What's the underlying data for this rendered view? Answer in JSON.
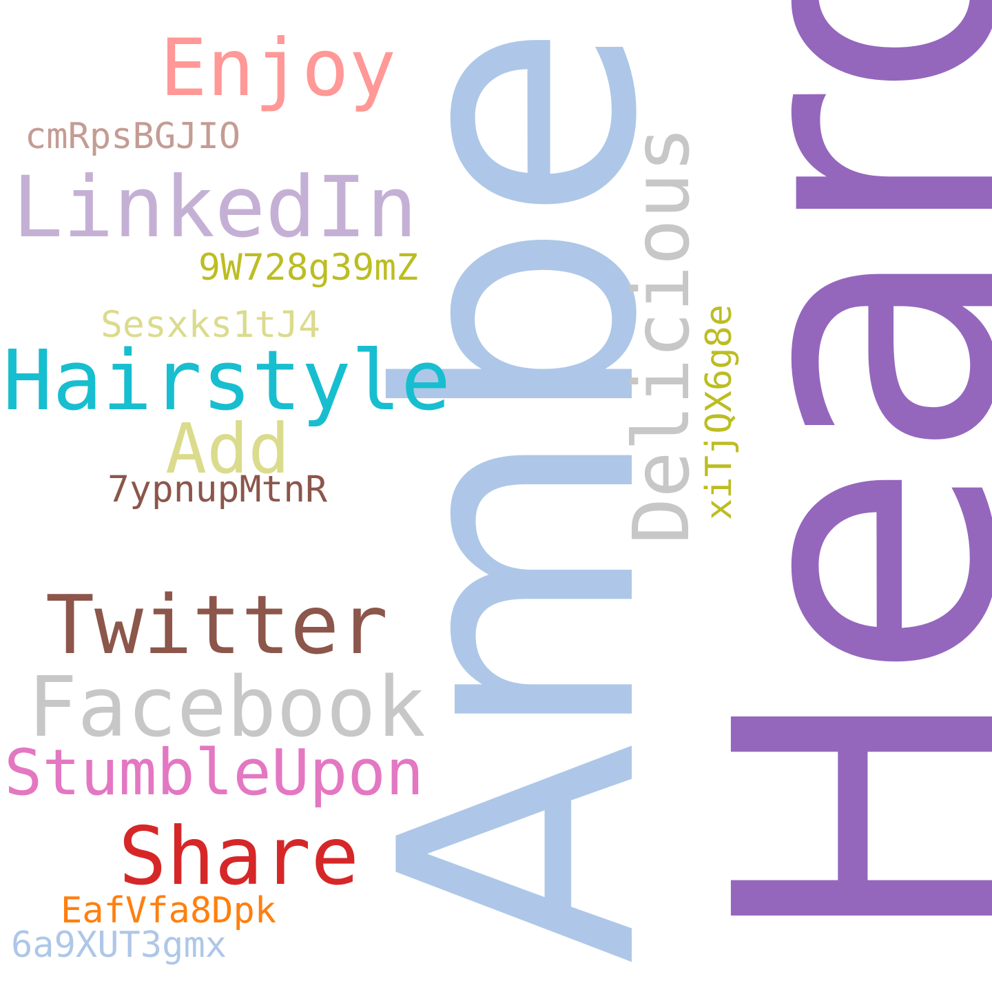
{
  "words": {
    "heard": {
      "text": "Heard",
      "color": "#9467bd"
    },
    "amber": {
      "text": "Amber",
      "color": "#aec7e8"
    },
    "delicious": {
      "text": "Delicious",
      "color": "#c7c7c7"
    },
    "xitjqx": {
      "text": "xiTjQX6g8e",
      "color": "#bcbd22"
    },
    "enjoy": {
      "text": "Enjoy",
      "color": "#ff9896"
    },
    "cmrps": {
      "text": "cmRpsBGJIO",
      "color": "#c49c94"
    },
    "linkedin": {
      "text": "LinkedIn",
      "color": "#c5b0d5"
    },
    "w728": {
      "text": "9W728g39mZ",
      "color": "#bcbd22"
    },
    "sesxks": {
      "text": "Sesxks1tJ4",
      "color": "#dbdb8d"
    },
    "hairstyle": {
      "text": "Hairstyle",
      "color": "#17becf"
    },
    "add": {
      "text": "Add",
      "color": "#dbdb8d"
    },
    "ypnup": {
      "text": "7ypnupMtnR",
      "color": "#8c564b"
    },
    "twitter": {
      "text": "Twitter",
      "color": "#8c564b"
    },
    "facebook": {
      "text": "Facebook",
      "color": "#c7c7c7"
    },
    "stumbleupon": {
      "text": "StumbleUpon",
      "color": "#e377c2"
    },
    "share": {
      "text": "Share",
      "color": "#d62728"
    },
    "eafvfa": {
      "text": "EafVfa8Dpk",
      "color": "#ff7f0e"
    },
    "a9xut": {
      "text": "6a9XUT3gmx",
      "color": "#aec7e8"
    }
  }
}
